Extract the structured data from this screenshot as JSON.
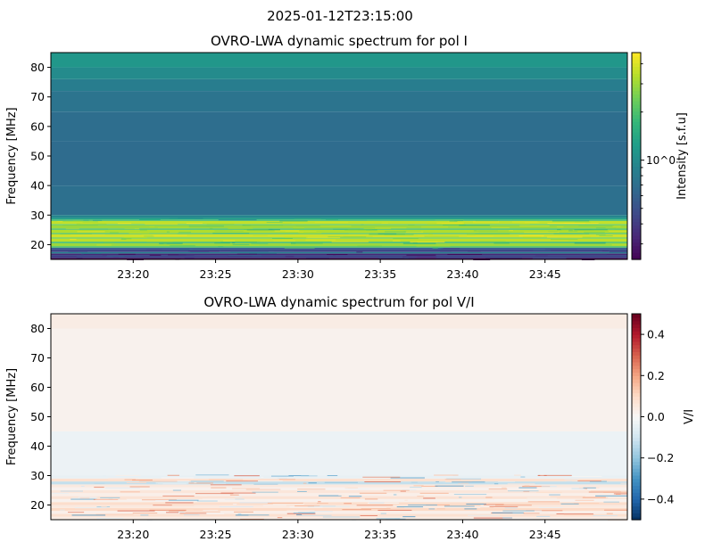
{
  "suptitle": "2025-01-12T23:15:00",
  "chart_data": [
    {
      "type": "heatmap",
      "title": "OVRO-LWA dynamic spectrum for pol I",
      "xlabel": "",
      "ylabel": "Frequency [MHz]",
      "xlim": [
        "23:15",
        "23:50"
      ],
      "ylim": [
        15,
        85
      ],
      "xticks": [
        "23:20",
        "23:25",
        "23:30",
        "23:35",
        "23:40",
        "23:45"
      ],
      "yticks": [
        20,
        30,
        40,
        50,
        60,
        70,
        80
      ],
      "colormap": "viridis",
      "color_scale": "log",
      "clim": [
        0.24,
        4.7
      ],
      "colorbar_label": "Intensity [s.f.u]",
      "colorbar_ticks": [
        "10^0"
      ],
      "frequency_bands": [
        {
          "f": [
            15,
            15.5
          ],
          "v": 0.22
        },
        {
          "f": [
            15.5,
            16.5
          ],
          "v": 0.45
        },
        {
          "f": [
            16.5,
            17
          ],
          "v": 0.33
        },
        {
          "f": [
            17,
            17.5
          ],
          "v": 0.9
        },
        {
          "f": [
            17.5,
            18.5
          ],
          "v": 0.45
        },
        {
          "f": [
            18.5,
            19
          ],
          "v": 0.6
        },
        {
          "f": [
            19,
            19.5
          ],
          "v": 2.0
        },
        {
          "f": [
            19.5,
            20.5
          ],
          "v": 3.0
        },
        {
          "f": [
            20.5,
            21
          ],
          "v": 1.8
        },
        {
          "f": [
            21,
            22
          ],
          "v": 3.5
        },
        {
          "f": [
            22,
            22.5
          ],
          "v": 2.5
        },
        {
          "f": [
            22.5,
            23.5
          ],
          "v": 3.8
        },
        {
          "f": [
            23.5,
            24
          ],
          "v": 2.2
        },
        {
          "f": [
            24,
            25
          ],
          "v": 3.3
        },
        {
          "f": [
            25,
            25.5
          ],
          "v": 2.0
        },
        {
          "f": [
            25.5,
            26.5
          ],
          "v": 3.0
        },
        {
          "f": [
            26.5,
            27
          ],
          "v": 2.4
        },
        {
          "f": [
            27,
            28
          ],
          "v": 3.6
        },
        {
          "f": [
            28,
            28.5
          ],
          "v": 2.0
        },
        {
          "f": [
            28.5,
            29
          ],
          "v": 1.3
        },
        {
          "f": [
            29,
            30
          ],
          "v": 0.95
        },
        {
          "f": [
            30,
            40
          ],
          "v": 0.72
        },
        {
          "f": [
            40,
            55
          ],
          "v": 0.68
        },
        {
          "f": [
            55,
            65
          ],
          "v": 0.7
        },
        {
          "f": [
            65,
            72
          ],
          "v": 0.75
        },
        {
          "f": [
            72,
            76
          ],
          "v": 0.85
        },
        {
          "f": [
            76,
            80
          ],
          "v": 1.0
        },
        {
          "f": [
            80,
            85
          ],
          "v": 1.15
        }
      ]
    },
    {
      "type": "heatmap",
      "title": "OVRO-LWA dynamic spectrum for pol V/I",
      "xlabel": "",
      "ylabel": "Frequency [MHz]",
      "xlim": [
        "23:15",
        "23:50"
      ],
      "ylim": [
        15,
        85
      ],
      "xticks": [
        "23:20",
        "23:25",
        "23:30",
        "23:35",
        "23:40",
        "23:45"
      ],
      "yticks": [
        20,
        30,
        40,
        50,
        60,
        70,
        80
      ],
      "colormap": "RdBu_r",
      "color_scale": "linear",
      "clim": [
        -0.5,
        0.5
      ],
      "colorbar_label": "V/I",
      "colorbar_ticks": [
        "0.4",
        "0.2",
        "0.0",
        "−0.2",
        "−0.4"
      ],
      "frequency_bands": [
        {
          "f": [
            15,
            16
          ],
          "v": 0.04
        },
        {
          "f": [
            16,
            17
          ],
          "v": 0.08
        },
        {
          "f": [
            17,
            18
          ],
          "v": 0.03
        },
        {
          "f": [
            18,
            19
          ],
          "v": 0.1
        },
        {
          "f": [
            19,
            20
          ],
          "v": 0.05
        },
        {
          "f": [
            20,
            21
          ],
          "v": 0.09
        },
        {
          "f": [
            21,
            22
          ],
          "v": 0.02
        },
        {
          "f": [
            22,
            23
          ],
          "v": 0.07
        },
        {
          "f": [
            23,
            24
          ],
          "v": 0.03
        },
        {
          "f": [
            24,
            25
          ],
          "v": 0.06
        },
        {
          "f": [
            25,
            26
          ],
          "v": 0.02
        },
        {
          "f": [
            26,
            27
          ],
          "v": 0.05
        },
        {
          "f": [
            27,
            28
          ],
          "v": -0.12
        },
        {
          "f": [
            28,
            29
          ],
          "v": 0.08
        },
        {
          "f": [
            29,
            30
          ],
          "v": -0.04
        },
        {
          "f": [
            30,
            45
          ],
          "v": -0.03
        },
        {
          "f": [
            45,
            80
          ],
          "v": 0.02
        },
        {
          "f": [
            80,
            85
          ],
          "v": 0.04
        }
      ]
    }
  ]
}
